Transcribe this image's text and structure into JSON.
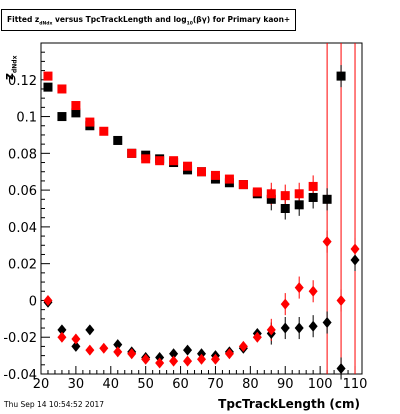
{
  "chart_data": {
    "type": "scatter",
    "title_prefix": "Fitted z",
    "title_sub": "dNdx",
    "title_mid": " versus TpcTrackLength and log",
    "title_sub2": "10",
    "title_end": "(βγ) for Primary kaon+",
    "xlabel": "TpcTrackLength (cm)",
    "ylabel_main": "z",
    "ylabel_sub": "dNdx",
    "timestamp": "Thu Sep 14 10:54:52 2017",
    "xlim": [
      20,
      112
    ],
    "ylim": [
      -0.04,
      0.14
    ],
    "xticks": [
      20,
      30,
      40,
      50,
      60,
      70,
      80,
      90,
      100,
      110
    ],
    "yticks": [
      -0.04,
      -0.02,
      0,
      0.02,
      0.04,
      0.06,
      0.08,
      0.1,
      0.12
    ],
    "ytick_labels": [
      "-0.04",
      "-0.02",
      "0",
      "0.02",
      "0.04",
      "0.06",
      "0.08",
      "0.1",
      "0.12"
    ],
    "series": [
      {
        "marker": "square",
        "color": "#000000",
        "points": [
          {
            "x": 22,
            "y": 0.116
          },
          {
            "x": 26,
            "y": 0.1
          },
          {
            "x": 30,
            "y": 0.102
          },
          {
            "x": 34,
            "y": 0.095
          },
          {
            "x": 42,
            "y": 0.087
          },
          {
            "x": 46,
            "y": 0.08
          },
          {
            "x": 50,
            "y": 0.079
          },
          {
            "x": 54,
            "y": 0.077
          },
          {
            "x": 58,
            "y": 0.075
          },
          {
            "x": 62,
            "y": 0.071
          },
          {
            "x": 66,
            "y": 0.07
          },
          {
            "x": 70,
            "y": 0.066
          },
          {
            "x": 74,
            "y": 0.064
          },
          {
            "x": 78,
            "y": 0.063
          },
          {
            "x": 82,
            "y": 0.058
          },
          {
            "x": 86,
            "y": 0.055
          },
          {
            "x": 90,
            "y": 0.05
          },
          {
            "x": 94,
            "y": 0.052
          },
          {
            "x": 98,
            "y": 0.056
          },
          {
            "x": 102,
            "y": 0.055
          },
          {
            "x": 106,
            "y": 0.122
          }
        ]
      },
      {
        "marker": "square",
        "color": "#ff0000",
        "points": [
          {
            "x": 22,
            "y": 0.122
          },
          {
            "x": 26,
            "y": 0.115
          },
          {
            "x": 30,
            "y": 0.106
          },
          {
            "x": 34,
            "y": 0.097
          },
          {
            "x": 38,
            "y": 0.092
          },
          {
            "x": 46,
            "y": 0.08
          },
          {
            "x": 50,
            "y": 0.077
          },
          {
            "x": 54,
            "y": 0.076
          },
          {
            "x": 58,
            "y": 0.076
          },
          {
            "x": 62,
            "y": 0.073
          },
          {
            "x": 66,
            "y": 0.07
          },
          {
            "x": 70,
            "y": 0.068
          },
          {
            "x": 74,
            "y": 0.066
          },
          {
            "x": 78,
            "y": 0.063
          },
          {
            "x": 82,
            "y": 0.059
          },
          {
            "x": 86,
            "y": 0.058
          },
          {
            "x": 90,
            "y": 0.057
          },
          {
            "x": 94,
            "y": 0.058
          },
          {
            "x": 98,
            "y": 0.062
          }
        ]
      },
      {
        "marker": "diamond",
        "color": "#000000",
        "points": [
          {
            "x": 22,
            "y": -0.001
          },
          {
            "x": 26,
            "y": -0.016
          },
          {
            "x": 30,
            "y": -0.025
          },
          {
            "x": 34,
            "y": -0.016
          },
          {
            "x": 42,
            "y": -0.024
          },
          {
            "x": 46,
            "y": -0.028
          },
          {
            "x": 50,
            "y": -0.031
          },
          {
            "x": 54,
            "y": -0.031
          },
          {
            "x": 58,
            "y": -0.029
          },
          {
            "x": 62,
            "y": -0.027
          },
          {
            "x": 66,
            "y": -0.029
          },
          {
            "x": 70,
            "y": -0.03
          },
          {
            "x": 74,
            "y": -0.028
          },
          {
            "x": 78,
            "y": -0.026
          },
          {
            "x": 82,
            "y": -0.018
          },
          {
            "x": 86,
            "y": -0.018
          },
          {
            "x": 90,
            "y": -0.015
          },
          {
            "x": 94,
            "y": -0.015
          },
          {
            "x": 98,
            "y": -0.014
          },
          {
            "x": 102,
            "y": -0.012
          },
          {
            "x": 106,
            "y": -0.037
          },
          {
            "x": 110,
            "y": 0.022
          }
        ]
      },
      {
        "marker": "diamond",
        "color": "#ff0000",
        "points": [
          {
            "x": 22,
            "y": 0.0
          },
          {
            "x": 26,
            "y": -0.02
          },
          {
            "x": 30,
            "y": -0.021
          },
          {
            "x": 34,
            "y": -0.027
          },
          {
            "x": 38,
            "y": -0.026
          },
          {
            "x": 42,
            "y": -0.028
          },
          {
            "x": 46,
            "y": -0.029
          },
          {
            "x": 50,
            "y": -0.032
          },
          {
            "x": 54,
            "y": -0.034
          },
          {
            "x": 58,
            "y": -0.033
          },
          {
            "x": 62,
            "y": -0.033
          },
          {
            "x": 66,
            "y": -0.032
          },
          {
            "x": 70,
            "y": -0.032
          },
          {
            "x": 74,
            "y": -0.029
          },
          {
            "x": 78,
            "y": -0.025
          },
          {
            "x": 82,
            "y": -0.02
          },
          {
            "x": 86,
            "y": -0.016
          },
          {
            "x": 90,
            "y": -0.002
          },
          {
            "x": 94,
            "y": 0.007
          },
          {
            "x": 98,
            "y": 0.005
          },
          {
            "x": 102,
            "y": 0.032
          },
          {
            "x": 106,
            "y": 0.0
          },
          {
            "x": 110,
            "y": 0.028
          }
        ]
      }
    ]
  }
}
